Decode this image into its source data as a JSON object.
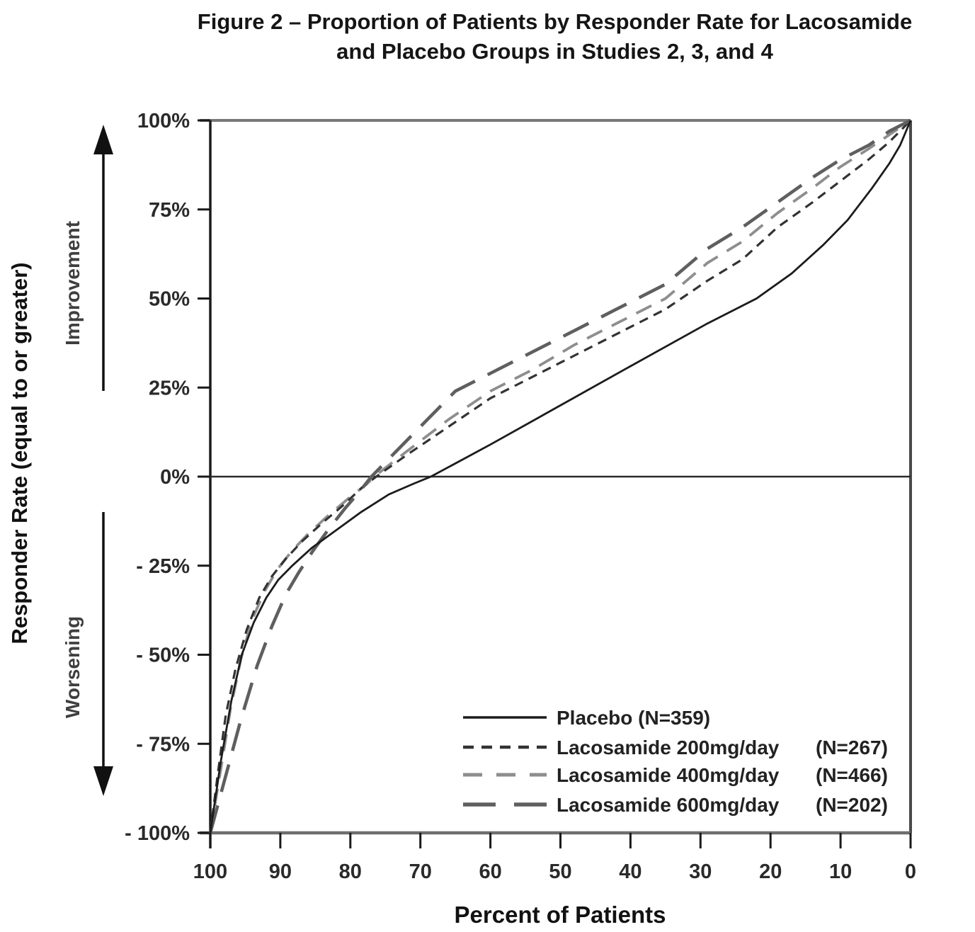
{
  "title": {
    "line1": "Figure 2 – Proportion of Patients by Responder Rate for Lacosamide",
    "line2": "and Placebo Groups in Studies 2, 3, and 4"
  },
  "chart_data": {
    "type": "line",
    "title": "Figure 2 – Proportion of Patients by Responder Rate for Lacosamide and Placebo Groups in Studies 2, 3, and 4",
    "xlabel": "Percent of Patients",
    "ylabel": "Responder Rate (equal to or greater)",
    "x_axis": {
      "min": 0,
      "max": 100,
      "reversed": true,
      "tick_values": [
        100,
        90,
        80,
        70,
        60,
        50,
        40,
        30,
        20,
        10,
        0
      ],
      "tick_labels": [
        "100",
        "90",
        "80",
        "70",
        "60",
        "50",
        "40",
        "30",
        "20",
        "10",
        "0"
      ]
    },
    "y_axis": {
      "min": -100,
      "max": 100,
      "tick_values": [
        100,
        75,
        50,
        25,
        0,
        -25,
        -50,
        -75,
        -100
      ],
      "tick_labels": [
        "100%",
        "75%",
        "50%",
        "25%",
        "0%",
        "- 25%",
        "- 50%",
        "- 75%",
        "- 100%"
      ]
    },
    "annotations": {
      "improvement": "Improvement",
      "worsening": "Worsening"
    },
    "grid": "off",
    "zero_line": true,
    "legend_position": "inside-bottom-right",
    "series": [
      {
        "name": "Placebo",
        "legend_label": "Placebo (N=359)",
        "legend_n": "",
        "n": 359,
        "line_style": "solid",
        "color": "#1c1c1c",
        "points": [
          [
            100,
            -100
          ],
          [
            98.5,
            -80
          ],
          [
            97,
            -63
          ],
          [
            95.5,
            -50
          ],
          [
            93.8,
            -41
          ],
          [
            92,
            -34
          ],
          [
            90.3,
            -29
          ],
          [
            88.3,
            -25
          ],
          [
            85.5,
            -20
          ],
          [
            82,
            -15
          ],
          [
            78.5,
            -10
          ],
          [
            74.5,
            -5
          ],
          [
            71,
            -2
          ],
          [
            68.5,
            0
          ],
          [
            60,
            9
          ],
          [
            50,
            20
          ],
          [
            40,
            31
          ],
          [
            29,
            43
          ],
          [
            22,
            50
          ],
          [
            17,
            57
          ],
          [
            12.5,
            65
          ],
          [
            9,
            72
          ],
          [
            5.5,
            81
          ],
          [
            3,
            88
          ],
          [
            1.5,
            93
          ],
          [
            0,
            100
          ]
        ]
      },
      {
        "name": "Lacosamide 200mg/day",
        "legend_label": "Lacosamide 200mg/day",
        "legend_n": "(N=267)",
        "n": 267,
        "line_style": "short-dash",
        "color": "#333333",
        "points": [
          [
            100,
            -100
          ],
          [
            98.9,
            -83
          ],
          [
            97.8,
            -67
          ],
          [
            96.4,
            -54
          ],
          [
            94.8,
            -43
          ],
          [
            93,
            -34
          ],
          [
            91.2,
            -28
          ],
          [
            89.2,
            -23
          ],
          [
            86.8,
            -18
          ],
          [
            84,
            -13
          ],
          [
            81,
            -8
          ],
          [
            78.3,
            -3
          ],
          [
            76.3,
            0
          ],
          [
            72,
            6
          ],
          [
            66,
            14
          ],
          [
            60,
            22
          ],
          [
            54,
            28
          ],
          [
            48,
            34
          ],
          [
            42,
            40
          ],
          [
            35,
            47
          ],
          [
            29,
            55
          ],
          [
            24,
            61
          ],
          [
            19,
            70
          ],
          [
            14,
            77
          ],
          [
            10,
            83
          ],
          [
            6,
            89
          ],
          [
            3,
            94
          ],
          [
            0,
            100
          ]
        ]
      },
      {
        "name": "Lacosamide 400mg/day",
        "legend_label": "Lacosamide 400mg/day",
        "legend_n": "(N=466)",
        "n": 466,
        "line_style": "medium-dash",
        "color": "#8e8e8e",
        "points": [
          [
            100,
            -100
          ],
          [
            98.4,
            -81
          ],
          [
            97.1,
            -65
          ],
          [
            95.6,
            -51
          ],
          [
            94,
            -40
          ],
          [
            92.2,
            -32
          ],
          [
            90.4,
            -26
          ],
          [
            88.4,
            -21
          ],
          [
            86,
            -16
          ],
          [
            83.2,
            -11
          ],
          [
            80.2,
            -6
          ],
          [
            77.6,
            -2
          ],
          [
            76.6,
            0
          ],
          [
            72,
            7
          ],
          [
            66,
            16
          ],
          [
            60,
            24
          ],
          [
            54,
            30
          ],
          [
            48,
            37
          ],
          [
            42,
            43
          ],
          [
            35,
            50
          ],
          [
            29,
            60
          ],
          [
            24,
            66
          ],
          [
            19,
            74
          ],
          [
            14,
            81
          ],
          [
            10,
            87
          ],
          [
            6,
            92
          ],
          [
            3,
            96
          ],
          [
            0,
            100
          ]
        ]
      },
      {
        "name": "Lacosamide 600mg/day",
        "legend_label": "Lacosamide 600mg/day",
        "legend_n": "(N=202)",
        "n": 202,
        "line_style": "long-dash",
        "color": "#5f5f5f",
        "points": [
          [
            100,
            -100
          ],
          [
            97.8,
            -84
          ],
          [
            95.6,
            -68
          ],
          [
            93.3,
            -53
          ],
          [
            91.2,
            -42
          ],
          [
            89.2,
            -33
          ],
          [
            87.4,
            -27
          ],
          [
            85.4,
            -21
          ],
          [
            83.2,
            -15
          ],
          [
            80.8,
            -9
          ],
          [
            78.6,
            -4
          ],
          [
            77,
            0
          ],
          [
            74,
            6
          ],
          [
            69.5,
            15
          ],
          [
            65,
            24
          ],
          [
            62,
            27
          ],
          [
            55,
            34
          ],
          [
            48,
            41
          ],
          [
            42,
            47
          ],
          [
            35,
            54
          ],
          [
            29,
            64
          ],
          [
            24,
            70
          ],
          [
            19,
            77
          ],
          [
            14,
            84
          ],
          [
            10,
            89
          ],
          [
            6,
            93
          ],
          [
            3,
            97
          ],
          [
            0,
            100
          ]
        ]
      }
    ]
  }
}
